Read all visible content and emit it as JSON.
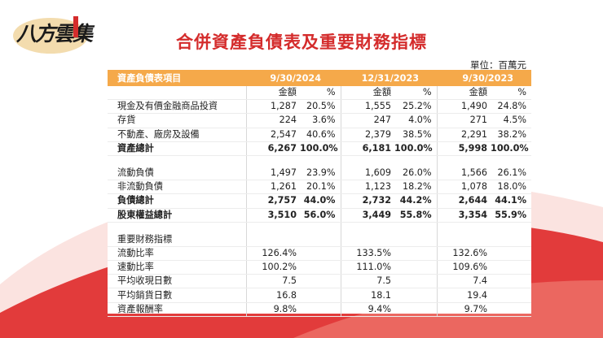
{
  "logo": {
    "text": "八方雲集"
  },
  "title": "合併資產負債表及重要財務指標",
  "unit": "單位：百萬元",
  "header": {
    "item": "資產負債表項目",
    "p1": "9/30/2024",
    "p2": "12/31/2023",
    "p3": "9/30/2023"
  },
  "subheader": {
    "amount": "金額",
    "pct": "%"
  },
  "balance_rows": [
    {
      "name": "現金及有價金融商品投資",
      "a1": "1,287",
      "p1": "20.5%",
      "a2": "1,555",
      "p2": "25.2%",
      "a3": "1,490",
      "p3": "24.8%"
    },
    {
      "name": "存貨",
      "a1": "224",
      "p1": "3.6%",
      "a2": "247",
      "p2": "4.0%",
      "a3": "271",
      "p3": "4.5%"
    },
    {
      "name": "不動產、廠房及設備",
      "a1": "2,547",
      "p1": "40.6%",
      "a2": "2,379",
      "p2": "38.5%",
      "a3": "2,291",
      "p3": "38.2%"
    },
    {
      "name": "資產總計",
      "a1": "6,267",
      "p1": "100.0%",
      "a2": "6,181",
      "p2": "100.0%",
      "a3": "5,998",
      "p3": "100.0%"
    }
  ],
  "liability_rows": [
    {
      "name": "流動負債",
      "a1": "1,497",
      "p1": "23.9%",
      "a2": "1,609",
      "p2": "26.0%",
      "a3": "1,566",
      "p3": "26.1%"
    },
    {
      "name": "非流動負債",
      "a1": "1,261",
      "p1": "20.1%",
      "a2": "1,123",
      "p2": "18.2%",
      "a3": "1,078",
      "p3": "18.0%"
    },
    {
      "name": "負債總計",
      "a1": "2,757",
      "p1": "44.0%",
      "a2": "2,732",
      "p2": "44.2%",
      "a3": "2,644",
      "p3": "44.1%"
    },
    {
      "name": "股東權益總計",
      "a1": "3,510",
      "p1": "56.0%",
      "a2": "3,449",
      "p2": "55.8%",
      "a3": "3,354",
      "p3": "55.9%"
    }
  ],
  "indicators_title": "重要財務指標",
  "indicator_rows": [
    {
      "name": "流動比率",
      "v1": "126.4%",
      "v2": "133.5%",
      "v3": "132.6%"
    },
    {
      "name": "速動比率",
      "v1": "100.2%",
      "v2": "111.0%",
      "v3": "109.6%"
    },
    {
      "name": "平均收現日數",
      "v1": "7.5",
      "v2": "7.5",
      "v3": "7.4"
    },
    {
      "name": "平均銷貨日數",
      "v1": "16.8",
      "v2": "18.1",
      "v3": "19.4"
    },
    {
      "name": "資產報酬率",
      "v1": "9.8%",
      "v2": "9.4%",
      "v3": "9.7%"
    }
  ],
  "colors": {
    "accent": "#f5a94a",
    "title": "#d42c2c",
    "curve": "#e23b3b"
  }
}
